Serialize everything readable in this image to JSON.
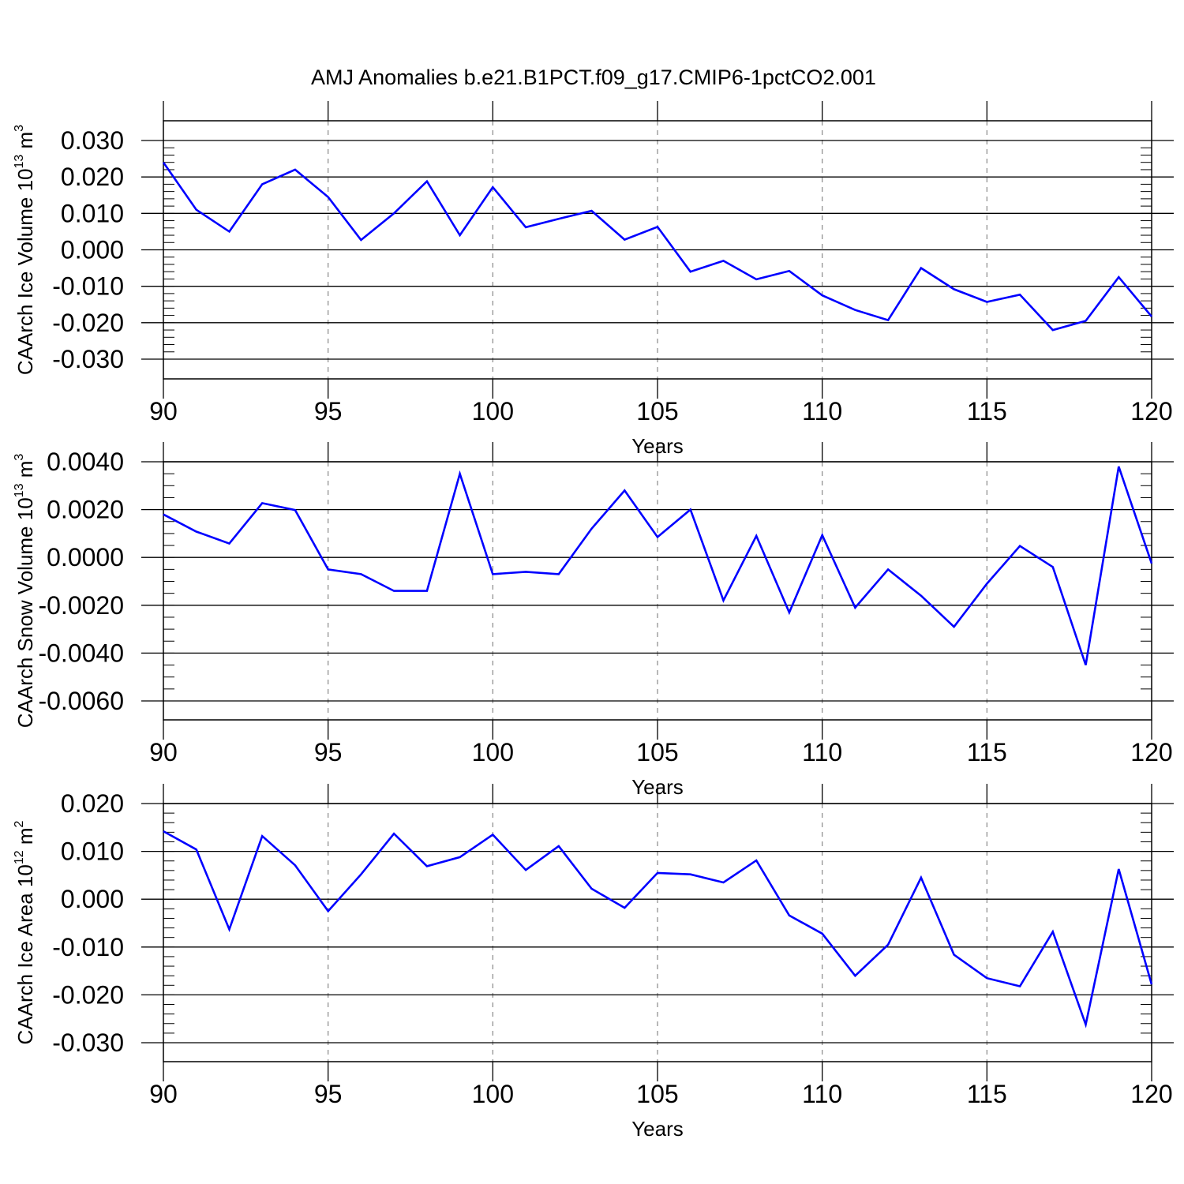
{
  "title": "AMJ Anomalies b.e21.B1PCT.f09_g17.CMIP6-1pctCO2.001",
  "line_color": "#0000ff",
  "chart_data": [
    {
      "type": "line",
      "ylabel": {
        "main": "CAArch Ice Volume 10",
        "exp": "13",
        "rest": " m",
        "unit_exp": "3"
      },
      "xlabel": "Years",
      "xlim": [
        90,
        120
      ],
      "ylim": [
        -0.03,
        0.03
      ],
      "xticks": [
        90,
        95,
        100,
        105,
        110,
        115,
        120
      ],
      "xtick_labels": [
        "90",
        "95",
        "100",
        "105",
        "110",
        "115",
        "120"
      ],
      "yticks": [
        -0.03,
        -0.02,
        -0.01,
        0.0,
        0.01,
        0.02,
        0.03
      ],
      "ytick_labels": [
        "-0.030",
        "-0.020",
        "-0.010",
        "0.000",
        "0.010",
        "0.020",
        "0.030"
      ],
      "yminor_step": 0.002,
      "x": [
        90,
        91,
        92,
        93,
        94,
        95,
        96,
        97,
        98,
        99,
        100,
        101,
        102,
        103,
        104,
        105,
        106,
        107,
        108,
        109,
        110,
        111,
        112,
        113,
        114,
        115,
        116,
        117,
        118,
        119,
        120
      ],
      "values": [
        0.024,
        0.011,
        0.005,
        0.018,
        0.022,
        0.0145,
        0.0027,
        0.01,
        0.0188,
        0.004,
        0.0172,
        0.0062,
        0.0085,
        0.0107,
        0.0028,
        0.0063,
        -0.006,
        -0.003,
        -0.0081,
        -0.0058,
        -0.0125,
        -0.0165,
        -0.0193,
        -0.005,
        -0.0108,
        -0.0143,
        -0.0123,
        -0.022,
        -0.0195,
        -0.0075,
        -0.0183
      ]
    },
    {
      "type": "line",
      "ylabel": {
        "main": "CAArch Snow Volume 10",
        "exp": "13",
        "rest": " m",
        "unit_exp": "3"
      },
      "xlabel": "Years",
      "xlim": [
        90,
        120
      ],
      "ylim": [
        -0.006,
        0.0049
      ],
      "xticks": [
        90,
        95,
        100,
        105,
        110,
        115,
        120
      ],
      "xtick_labels": [
        "90",
        "95",
        "100",
        "105",
        "110",
        "115",
        "120"
      ],
      "yticks": [
        -0.006,
        -0.004,
        -0.002,
        0.0,
        0.002,
        0.004
      ],
      "ytick_labels": [
        "-0.0060",
        "-0.0040",
        "-0.0020",
        "0.0000",
        "0.0020",
        "0.0040"
      ],
      "yminor_step": 0.0005,
      "x": [
        90,
        91,
        92,
        93,
        94,
        95,
        96,
        97,
        98,
        99,
        100,
        101,
        102,
        103,
        104,
        105,
        106,
        107,
        108,
        109,
        110,
        111,
        112,
        113,
        114,
        115,
        116,
        117,
        118,
        119,
        120
      ],
      "values": [
        0.0018,
        0.00108,
        0.00058,
        0.00227,
        0.00198,
        -0.0005,
        -0.0007,
        -0.0014,
        -0.0014,
        0.0035,
        -0.0007,
        -0.0006,
        -0.0007,
        0.0012,
        0.0028,
        0.00085,
        0.002,
        -0.0018,
        0.0009,
        -0.0023,
        0.00093,
        -0.0021,
        -0.0005,
        -0.0016,
        -0.0029,
        -0.0011,
        0.00048,
        -0.0004,
        -0.0045,
        0.0038,
        -0.00025
      ]
    },
    {
      "type": "line",
      "ylabel": {
        "main": "CAArch Ice Area 10",
        "exp": "12",
        "rest": " m",
        "unit_exp": "2"
      },
      "xlabel": "Years",
      "xlim": [
        90,
        120
      ],
      "ylim": [
        -0.03,
        0.025
      ],
      "xticks": [
        90,
        95,
        100,
        105,
        110,
        115,
        120
      ],
      "xtick_labels": [
        "90",
        "95",
        "100",
        "105",
        "110",
        "115",
        "120"
      ],
      "yticks": [
        -0.03,
        -0.02,
        -0.01,
        0.0,
        0.01,
        0.02
      ],
      "ytick_labels": [
        "-0.030",
        "-0.020",
        "-0.010",
        "0.000",
        "0.010",
        "0.020"
      ],
      "yminor_step": 0.002,
      "x": [
        90,
        91,
        92,
        93,
        94,
        95,
        96,
        97,
        98,
        99,
        100,
        101,
        102,
        103,
        104,
        105,
        106,
        107,
        108,
        109,
        110,
        111,
        112,
        113,
        114,
        115,
        116,
        117,
        118,
        119,
        120
      ],
      "values": [
        0.0142,
        0.0104,
        -0.0063,
        0.0132,
        0.0071,
        -0.0025,
        0.0052,
        0.0137,
        0.0069,
        0.0088,
        0.0135,
        0.0061,
        0.0111,
        0.0022,
        -0.0018,
        0.0055,
        0.0052,
        0.0035,
        0.0081,
        -0.0034,
        -0.0072,
        -0.016,
        -0.0095,
        0.0045,
        -0.0116,
        -0.0165,
        -0.0182,
        -0.0068,
        -0.0262,
        0.0063,
        -0.0178
      ]
    }
  ]
}
